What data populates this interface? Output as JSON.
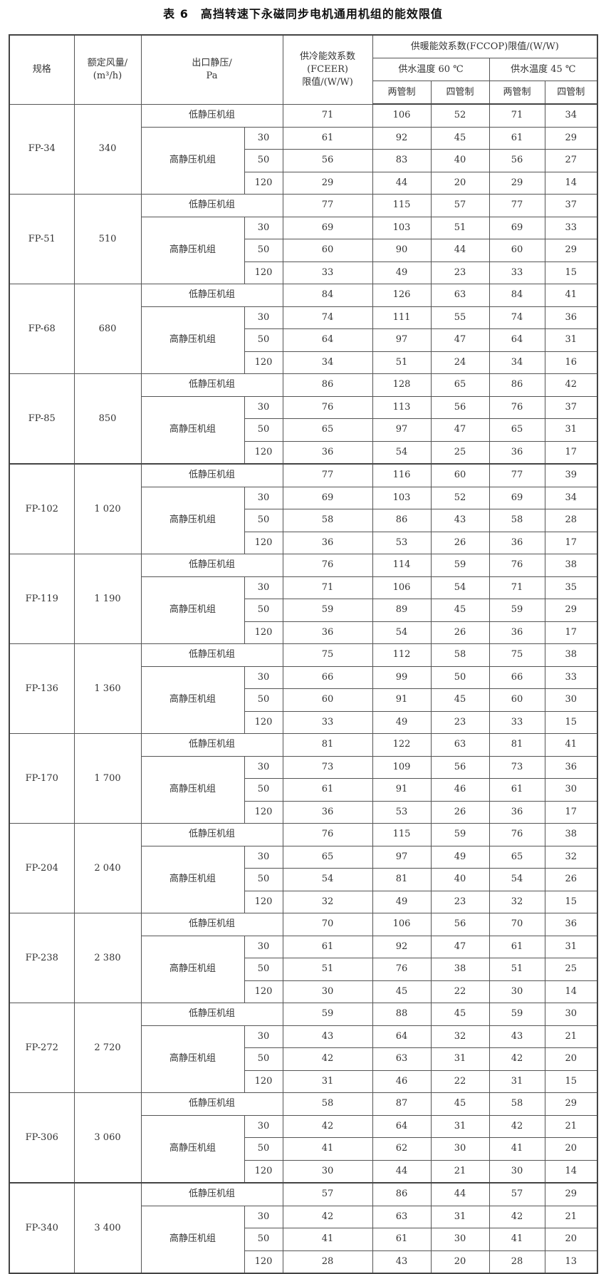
{
  "title": "表 6　高挡转速下永磁同步电机通用机组的能效限值",
  "header": {
    "spec": "规格",
    "airflow": "额定风量/",
    "airflow_unit": "(m³/h)",
    "pressure": "出口静压/",
    "pressure_unit": "Pa",
    "fceer_1": "供冷能效系数",
    "fceer_2": "(FCEER)",
    "fceer_3": "限值/(W/W)",
    "fccop": "供暖能效系数(FCCOP)限值/(W/W)",
    "temp60": "供水温度 60 ℃",
    "temp45": "供水温度 45 ℃",
    "two_pipe": "两管制",
    "four_pipe": "四管制"
  },
  "labels": {
    "low": "低静压机组",
    "high": "高静压机组"
  },
  "pressures": [
    "30",
    "50",
    "120"
  ],
  "groups": [
    {
      "spec": "FP-34",
      "flow": "340",
      "rows": [
        [
          "71",
          "106",
          "52",
          "71",
          "34"
        ],
        [
          "61",
          "92",
          "45",
          "61",
          "29"
        ],
        [
          "56",
          "83",
          "40",
          "56",
          "27"
        ],
        [
          "29",
          "44",
          "20",
          "29",
          "14"
        ]
      ]
    },
    {
      "spec": "FP-51",
      "flow": "510",
      "rows": [
        [
          "77",
          "115",
          "57",
          "77",
          "37"
        ],
        [
          "69",
          "103",
          "51",
          "69",
          "33"
        ],
        [
          "60",
          "90",
          "44",
          "60",
          "29"
        ],
        [
          "33",
          "49",
          "23",
          "33",
          "15"
        ]
      ]
    },
    {
      "spec": "FP-68",
      "flow": "680",
      "rows": [
        [
          "84",
          "126",
          "63",
          "84",
          "41"
        ],
        [
          "74",
          "111",
          "55",
          "74",
          "36"
        ],
        [
          "64",
          "97",
          "47",
          "64",
          "31"
        ],
        [
          "34",
          "51",
          "24",
          "34",
          "16"
        ]
      ]
    },
    {
      "spec": "FP-85",
      "flow": "850",
      "rows": [
        [
          "86",
          "128",
          "65",
          "86",
          "42"
        ],
        [
          "76",
          "113",
          "56",
          "76",
          "37"
        ],
        [
          "65",
          "97",
          "47",
          "65",
          "31"
        ],
        [
          "36",
          "54",
          "25",
          "36",
          "17"
        ]
      ]
    },
    {
      "spec": "FP-102",
      "flow": "1 020",
      "rows": [
        [
          "77",
          "116",
          "60",
          "77",
          "39"
        ],
        [
          "69",
          "103",
          "52",
          "69",
          "34"
        ],
        [
          "58",
          "86",
          "43",
          "58",
          "28"
        ],
        [
          "36",
          "53",
          "26",
          "36",
          "17"
        ]
      ]
    },
    {
      "spec": "FP-119",
      "flow": "1 190",
      "rows": [
        [
          "76",
          "114",
          "59",
          "76",
          "38"
        ],
        [
          "71",
          "106",
          "54",
          "71",
          "35"
        ],
        [
          "59",
          "89",
          "45",
          "59",
          "29"
        ],
        [
          "36",
          "54",
          "26",
          "36",
          "17"
        ]
      ]
    },
    {
      "spec": "FP-136",
      "flow": "1 360",
      "rows": [
        [
          "75",
          "112",
          "58",
          "75",
          "38"
        ],
        [
          "66",
          "99",
          "50",
          "66",
          "33"
        ],
        [
          "60",
          "91",
          "45",
          "60",
          "30"
        ],
        [
          "33",
          "49",
          "23",
          "33",
          "15"
        ]
      ]
    },
    {
      "spec": "FP-170",
      "flow": "1 700",
      "rows": [
        [
          "81",
          "122",
          "63",
          "81",
          "41"
        ],
        [
          "73",
          "109",
          "56",
          "73",
          "36"
        ],
        [
          "61",
          "91",
          "46",
          "61",
          "30"
        ],
        [
          "36",
          "53",
          "26",
          "36",
          "17"
        ]
      ]
    },
    {
      "spec": "FP-204",
      "flow": "2 040",
      "rows": [
        [
          "76",
          "115",
          "59",
          "76",
          "38"
        ],
        [
          "65",
          "97",
          "49",
          "65",
          "32"
        ],
        [
          "54",
          "81",
          "40",
          "54",
          "26"
        ],
        [
          "32",
          "49",
          "23",
          "32",
          "15"
        ]
      ]
    },
    {
      "spec": "FP-238",
      "flow": "2 380",
      "rows": [
        [
          "70",
          "106",
          "56",
          "70",
          "36"
        ],
        [
          "61",
          "92",
          "47",
          "61",
          "31"
        ],
        [
          "51",
          "76",
          "38",
          "51",
          "25"
        ],
        [
          "30",
          "45",
          "22",
          "30",
          "14"
        ]
      ]
    },
    {
      "spec": "FP-272",
      "flow": "2 720",
      "rows": [
        [
          "59",
          "88",
          "45",
          "59",
          "30"
        ],
        [
          "43",
          "64",
          "32",
          "43",
          "21"
        ],
        [
          "42",
          "63",
          "31",
          "42",
          "20"
        ],
        [
          "31",
          "46",
          "22",
          "31",
          "15"
        ]
      ]
    },
    {
      "spec": "FP-306",
      "flow": "3 060",
      "rows": [
        [
          "58",
          "87",
          "45",
          "58",
          "29"
        ],
        [
          "42",
          "64",
          "31",
          "42",
          "21"
        ],
        [
          "41",
          "62",
          "30",
          "41",
          "20"
        ],
        [
          "30",
          "44",
          "21",
          "30",
          "14"
        ]
      ]
    },
    {
      "spec": "FP-340",
      "flow": "3 400",
      "rows": [
        [
          "57",
          "86",
          "44",
          "57",
          "29"
        ],
        [
          "42",
          "63",
          "31",
          "42",
          "21"
        ],
        [
          "41",
          "61",
          "30",
          "41",
          "20"
        ],
        [
          "28",
          "43",
          "20",
          "28",
          "13"
        ]
      ]
    }
  ]
}
